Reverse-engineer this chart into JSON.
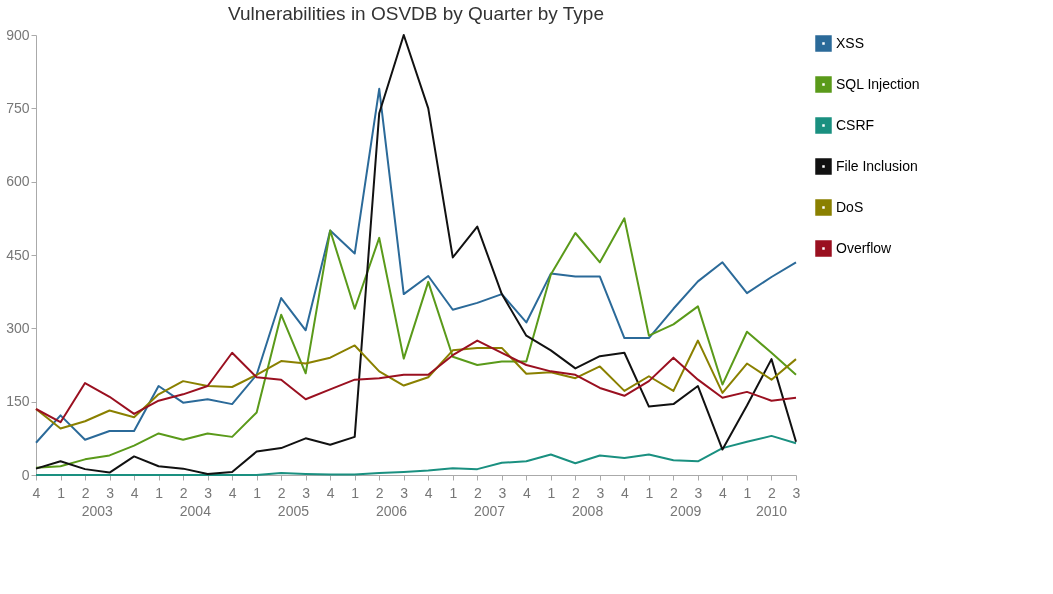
{
  "chart_data": {
    "type": "line",
    "title": "Vulnerabilities in OSVDB by Quarter by Type",
    "categories": [
      "4",
      "1",
      "2",
      "3",
      "4",
      "1",
      "2",
      "3",
      "4",
      "1",
      "2",
      "3",
      "4",
      "1",
      "2",
      "3",
      "4",
      "1",
      "2",
      "3",
      "4",
      "1",
      "2",
      "3",
      "4",
      "1",
      "2",
      "3",
      "4",
      "1",
      "2",
      "3"
    ],
    "annotations": [
      "2003",
      "2004",
      "2005",
      "2006",
      "2007",
      "2008",
      "2009",
      "2010"
    ],
    "ylim": [
      0,
      900
    ],
    "yticks": [
      0,
      150,
      300,
      450,
      600,
      750,
      900
    ],
    "grid": false,
    "legend": "right",
    "marker": "none",
    "line_style": "solid",
    "series": [
      {
        "name": "XSS",
        "color": "#2b6a99",
        "values": [
          66,
          122,
          72,
          90,
          90,
          182,
          148,
          155,
          145,
          205,
          362,
          296,
          500,
          453,
          790,
          370,
          407,
          338,
          352,
          370,
          312,
          412,
          406,
          406,
          280,
          280,
          340,
          396,
          435,
          372,
          405,
          435
        ]
      },
      {
        "name": "SQL Injection",
        "color": "#5a9a1a",
        "values": [
          15,
          18,
          32,
          40,
          60,
          85,
          72,
          85,
          78,
          128,
          328,
          208,
          500,
          340,
          485,
          238,
          395,
          242,
          225,
          232,
          232,
          410,
          495,
          435,
          525,
          285,
          308,
          345,
          185,
          293,
          250,
          205
        ]
      },
      {
        "name": "CSRF",
        "color": "#1a9080",
        "values": [
          0,
          0,
          0,
          0,
          0,
          0,
          0,
          0,
          0,
          0,
          4,
          2,
          1,
          1,
          4,
          6,
          9,
          14,
          12,
          25,
          28,
          42,
          24,
          40,
          35,
          42,
          30,
          28,
          55,
          68,
          80,
          65
        ]
      },
      {
        "name": "File Inclusion",
        "color": "#111111",
        "values": [
          13,
          28,
          12,
          5,
          38,
          18,
          13,
          2,
          6,
          48,
          55,
          75,
          62,
          78,
          740,
          900,
          750,
          445,
          508,
          370,
          285,
          255,
          218,
          243,
          250,
          140,
          145,
          182,
          52,
          142,
          237,
          68
        ]
      },
      {
        "name": "DoS",
        "color": "#8a8000",
        "values": [
          135,
          95,
          110,
          132,
          118,
          165,
          192,
          182,
          180,
          205,
          233,
          228,
          240,
          265,
          212,
          183,
          200,
          255,
          260,
          260,
          207,
          210,
          198,
          222,
          172,
          202,
          172,
          275,
          168,
          228,
          195,
          237
        ]
      },
      {
        "name": "Overflow",
        "color": "#9a1020",
        "values": [
          135,
          108,
          188,
          160,
          125,
          152,
          165,
          182,
          250,
          200,
          195,
          155,
          175,
          195,
          198,
          205,
          205,
          245,
          275,
          250,
          225,
          212,
          205,
          178,
          162,
          192,
          240,
          195,
          158,
          170,
          152,
          158
        ]
      }
    ]
  }
}
